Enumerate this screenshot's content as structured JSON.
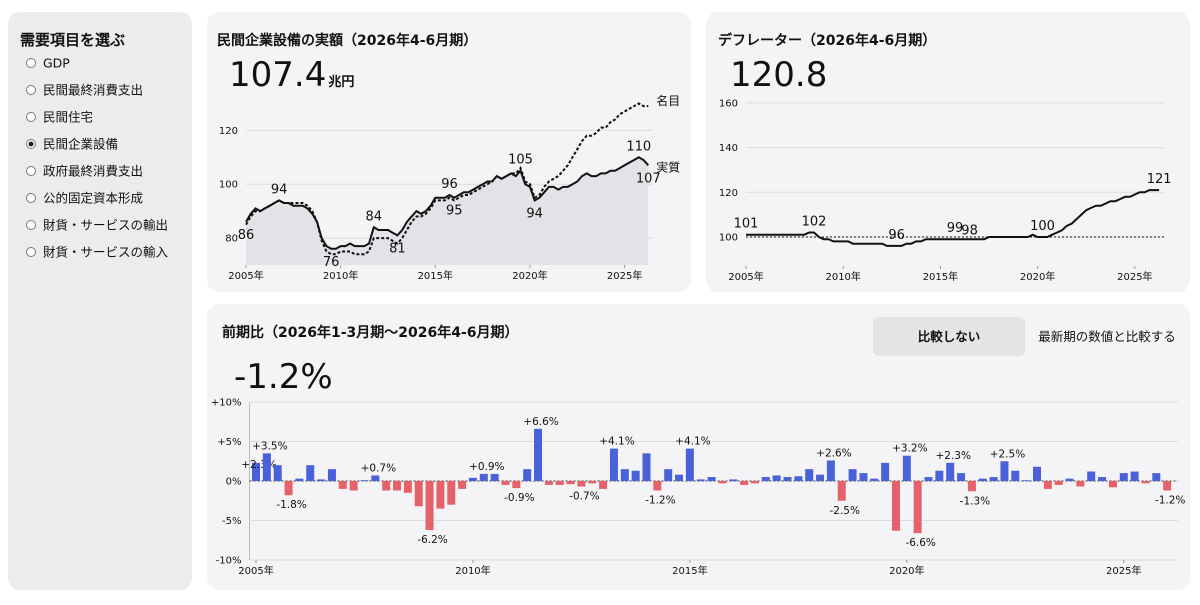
{
  "sidebar": {
    "title": "需要項目を選ぶ",
    "options": [
      "GDP",
      "民間最終消費支出",
      "民間住宅",
      "民間企業設備",
      "政府最終消費支出",
      "公的固定資本形成",
      "財貨・サービスの輸出",
      "財貨・サービスの輸入"
    ],
    "selected": 3
  },
  "compare": {
    "options": [
      "比較しない",
      "最新期の数値と比較する"
    ],
    "selected": 0
  },
  "chart_data": [
    {
      "type": "line",
      "title": "民間企業設備の実額（2026年4-6月期）",
      "value_text": "107.4",
      "unit": "兆円",
      "x": [
        2005,
        2005.25,
        2005.5,
        2005.75,
        2006,
        2006.25,
        2006.5,
        2006.75,
        2007,
        2007.25,
        2007.5,
        2007.75,
        2008,
        2008.25,
        2008.5,
        2008.75,
        2009,
        2009.25,
        2009.5,
        2009.75,
        2010,
        2010.25,
        2010.5,
        2010.75,
        2011,
        2011.25,
        2011.5,
        2011.75,
        2012,
        2012.25,
        2012.5,
        2012.75,
        2013,
        2013.25,
        2013.5,
        2013.75,
        2014,
        2014.25,
        2014.5,
        2014.75,
        2015,
        2015.25,
        2015.5,
        2015.75,
        2016,
        2016.25,
        2016.5,
        2016.75,
        2017,
        2017.25,
        2017.5,
        2017.75,
        2018,
        2018.25,
        2018.5,
        2018.75,
        2019,
        2019.25,
        2019.5,
        2019.75,
        2020,
        2020.25,
        2020.5,
        2020.75,
        2021,
        2021.25,
        2021.5,
        2021.75,
        2022,
        2022.25,
        2022.5,
        2022.75,
        2023,
        2023.25,
        2023.5,
        2023.75,
        2024,
        2024.25,
        2024.5,
        2024.75,
        2025,
        2025.25,
        2025.5,
        2025.75,
        2026,
        2026.25
      ],
      "series": [
        {
          "name": "名目",
          "color": "#111111",
          "style": "dashed",
          "values": [
            85,
            88,
            90,
            90,
            91,
            92,
            93,
            94,
            93,
            93,
            93,
            93,
            93,
            92,
            90,
            86,
            79,
            75,
            74,
            74,
            75,
            75,
            75,
            74,
            74,
            74,
            75,
            80,
            80,
            80,
            80,
            79,
            78,
            80,
            83,
            86,
            88,
            88,
            89,
            91,
            94,
            94,
            94,
            95,
            94,
            95,
            96,
            96,
            97,
            98,
            99,
            100,
            101,
            103,
            102,
            103,
            104,
            104,
            106,
            101,
            100,
            95,
            96,
            99,
            101,
            102,
            103,
            105,
            107,
            110,
            113,
            116,
            118,
            118,
            119,
            121,
            121,
            123,
            124,
            126,
            127,
            128,
            129,
            130,
            129,
            129
          ]
        },
        {
          "name": "実質",
          "color": "#111111",
          "style": "solid",
          "area": true,
          "values": [
            86,
            89,
            91,
            90,
            91,
            92,
            93,
            94,
            93,
            93,
            92,
            92,
            92,
            91,
            89,
            86,
            80,
            77,
            76,
            76,
            77,
            77,
            78,
            77,
            77,
            77,
            78,
            84,
            83,
            83,
            83,
            82,
            81,
            83,
            86,
            88,
            90,
            89,
            90,
            92,
            95,
            95,
            95,
            96,
            95,
            96,
            97,
            97,
            98,
            99,
            100,
            101,
            101,
            103,
            102,
            103,
            104,
            103,
            105,
            100,
            99,
            94,
            95,
            97,
            99,
            99,
            98,
            99,
            99,
            100,
            101,
            103,
            104,
            103,
            103,
            104,
            104,
            105,
            105,
            106,
            107,
            108,
            109,
            110,
            109,
            107
          ]
        }
      ],
      "annotations": [
        {
          "x": 2005,
          "y": 86,
          "position": "below"
        },
        {
          "x": 2006.75,
          "y": 94,
          "position": "above"
        },
        {
          "x": 2009.5,
          "y": 76,
          "position": "below"
        },
        {
          "x": 2011.75,
          "y": 84,
          "position": "above"
        },
        {
          "x": 2013,
          "y": 81,
          "position": "below"
        },
        {
          "x": 2015.75,
          "y": 96,
          "position": "above"
        },
        {
          "x": 2016,
          "y": 95,
          "position": "below"
        },
        {
          "x": 2019.5,
          "y": 105,
          "position": "above"
        },
        {
          "x": 2020.25,
          "y": 94,
          "position": "below"
        },
        {
          "x": 2025.75,
          "y": 110,
          "position": "above"
        },
        {
          "x": 2026.25,
          "y": 107,
          "position": "below"
        }
      ],
      "xlim": [
        2005,
        2026.5
      ],
      "xticks": [
        {
          "value": 2005,
          "label": "2005年"
        },
        {
          "value": 2010,
          "label": "2010年"
        },
        {
          "value": 2015,
          "label": "2015年"
        },
        {
          "value": 2020,
          "label": "2020年"
        },
        {
          "value": 2025,
          "label": "2025年"
        }
      ],
      "ylim": [
        70,
        132
      ],
      "yticks": [
        80,
        100,
        120
      ],
      "grid": true
    },
    {
      "type": "line",
      "title": "デフレーター（2026年4-6月期）",
      "value_text": "120.8",
      "reference_line": 100,
      "x": [
        2005,
        2005.25,
        2005.5,
        2005.75,
        2006,
        2006.25,
        2006.5,
        2006.75,
        2007,
        2007.25,
        2007.5,
        2007.75,
        2008,
        2008.25,
        2008.5,
        2008.75,
        2009,
        2009.25,
        2009.5,
        2009.75,
        2010,
        2010.25,
        2010.5,
        2010.75,
        2011,
        2011.25,
        2011.5,
        2011.75,
        2012,
        2012.25,
        2012.5,
        2012.75,
        2013,
        2013.25,
        2013.5,
        2013.75,
        2014,
        2014.25,
        2014.5,
        2014.75,
        2015,
        2015.25,
        2015.5,
        2015.75,
        2016,
        2016.25,
        2016.5,
        2016.75,
        2017,
        2017.25,
        2017.5,
        2017.75,
        2018,
        2018.25,
        2018.5,
        2018.75,
        2019,
        2019.25,
        2019.5,
        2019.75,
        2020,
        2020.25,
        2020.5,
        2020.75,
        2021,
        2021.25,
        2021.5,
        2021.75,
        2022,
        2022.25,
        2022.5,
        2022.75,
        2023,
        2023.25,
        2023.5,
        2023.75,
        2024,
        2024.25,
        2024.5,
        2024.75,
        2025,
        2025.25,
        2025.5,
        2025.75,
        2026,
        2026.25
      ],
      "series": [
        {
          "color": "#111111",
          "style": "solid",
          "values": [
            101,
            101,
            101,
            101,
            101,
            101,
            101,
            101,
            101,
            101,
            101,
            101,
            101,
            102,
            102,
            100,
            99,
            99,
            98,
            98,
            98,
            98,
            97,
            97,
            97,
            97,
            97,
            97,
            97,
            96,
            96,
            96,
            96,
            97,
            97,
            98,
            98,
            99,
            99,
            99,
            99,
            99,
            99,
            99,
            99,
            99,
            99,
            99,
            99,
            99,
            100,
            100,
            100,
            100,
            100,
            100,
            100,
            100,
            100,
            101,
            100,
            100,
            100,
            101,
            102,
            103,
            105,
            106,
            108,
            110,
            112,
            113,
            114,
            114,
            115,
            116,
            116,
            117,
            118,
            118,
            119,
            120,
            120,
            121,
            121,
            121
          ]
        }
      ],
      "annotations": [
        {
          "x": 2005,
          "y": 101,
          "position": "above"
        },
        {
          "x": 2008.5,
          "y": 102,
          "position": "above"
        },
        {
          "x": 2012.75,
          "y": 96,
          "position": "above"
        },
        {
          "x": 2015.75,
          "y": 99,
          "position": "above"
        },
        {
          "x": 2016.5,
          "y": 98,
          "position": "above"
        },
        {
          "x": 2020.25,
          "y": 100,
          "position": "above"
        },
        {
          "x": 2026.25,
          "y": 121,
          "position": "above"
        }
      ],
      "xlim": [
        2005,
        2026.5
      ],
      "xticks": [
        {
          "value": 2005,
          "label": "2005年"
        },
        {
          "value": 2010,
          "label": "2010年"
        },
        {
          "value": 2015,
          "label": "2015年"
        },
        {
          "value": 2020,
          "label": "2020年"
        },
        {
          "value": 2025,
          "label": "2025年"
        }
      ],
      "ylim": [
        87,
        164
      ],
      "yticks": [
        100,
        120,
        140,
        160
      ],
      "grid": true
    },
    {
      "type": "bar",
      "title": "前期比（2026年1-3月期〜2026年4-6月期）",
      "value_text": "-1.2%",
      "x": [
        2005,
        2005.25,
        2005.5,
        2005.75,
        2006,
        2006.25,
        2006.5,
        2006.75,
        2007,
        2007.25,
        2007.5,
        2007.75,
        2008,
        2008.25,
        2008.5,
        2008.75,
        2009,
        2009.25,
        2009.5,
        2009.75,
        2010,
        2010.25,
        2010.5,
        2010.75,
        2011,
        2011.25,
        2011.5,
        2011.75,
        2012,
        2012.25,
        2012.5,
        2012.75,
        2013,
        2013.25,
        2013.5,
        2013.75,
        2014,
        2014.25,
        2014.5,
        2014.75,
        2015,
        2015.25,
        2015.5,
        2015.75,
        2016,
        2016.25,
        2016.5,
        2016.75,
        2017,
        2017.25,
        2017.5,
        2017.75,
        2018,
        2018.25,
        2018.5,
        2018.75,
        2019,
        2019.25,
        2019.5,
        2019.75,
        2020,
        2020.25,
        2020.5,
        2020.75,
        2021,
        2021.25,
        2021.5,
        2021.75,
        2022,
        2022.25,
        2022.5,
        2022.75,
        2023,
        2023.25,
        2023.5,
        2023.75,
        2024,
        2024.25,
        2024.5,
        2024.75,
        2025,
        2025.25,
        2025.5,
        2025.75,
        2026
      ],
      "values": [
        2.3,
        3.5,
        2.0,
        -1.8,
        0.3,
        2.0,
        0.2,
        1.5,
        -1.0,
        -1.2,
        0.1,
        0.7,
        -1.2,
        -1.2,
        -1.5,
        -3.2,
        -6.2,
        -3.5,
        -3.0,
        -1.0,
        0.4,
        0.9,
        0.9,
        -0.5,
        -0.9,
        1.5,
        6.6,
        -0.5,
        -0.5,
        -0.4,
        -0.7,
        -0.3,
        -1.0,
        4.1,
        1.5,
        1.3,
        3.5,
        -1.2,
        1.5,
        0.8,
        4.1,
        0.2,
        0.5,
        -0.3,
        0.2,
        -0.5,
        -0.3,
        0.5,
        0.7,
        0.5,
        0.6,
        1.5,
        0.8,
        2.6,
        -2.5,
        1.5,
        1.0,
        0.3,
        2.3,
        -6.3,
        3.2,
        -6.6,
        0.5,
        1.3,
        2.3,
        1.0,
        -1.3,
        0.3,
        0.5,
        2.5,
        1.3,
        0.1,
        1.8,
        -1.0,
        -0.5,
        0.3,
        -0.7,
        1.2,
        0.5,
        -0.8,
        1.0,
        1.2,
        -0.3,
        1.0,
        -1.2
      ],
      "value_labels": [
        "+2.3%",
        "+3.5%",
        null,
        "-1.8%",
        null,
        null,
        null,
        null,
        null,
        null,
        null,
        "+0.7%",
        null,
        null,
        null,
        null,
        "-6.2%",
        null,
        null,
        null,
        null,
        "+0.9%",
        null,
        null,
        "-0.9%",
        null,
        "+6.6%",
        null,
        null,
        null,
        "-0.7%",
        null,
        null,
        "+4.1%",
        null,
        null,
        null,
        "-1.2%",
        null,
        null,
        "+4.1%",
        null,
        null,
        null,
        null,
        null,
        null,
        null,
        null,
        null,
        null,
        null,
        null,
        "+2.6%",
        "-2.5%",
        null,
        null,
        null,
        null,
        null,
        "+3.2%",
        "-6.6%",
        null,
        null,
        "+2.3%",
        null,
        "-1.3%",
        null,
        null,
        "+2.5%",
        null,
        null,
        null,
        null,
        null,
        null,
        null,
        null,
        null,
        null,
        null,
        null,
        null,
        null,
        "-1.2%"
      ],
      "colors": {
        "positive": "#4a62d9",
        "negative": "#e5626a"
      },
      "xlim": [
        2004.85,
        2026.25
      ],
      "xticks": [
        {
          "value": 2005,
          "label": "2005年"
        },
        {
          "value": 2010,
          "label": "2010年"
        },
        {
          "value": 2015,
          "label": "2015年"
        },
        {
          "value": 2020,
          "label": "2020年"
        },
        {
          "value": 2025,
          "label": "2025年"
        }
      ],
      "ylim": [
        -10,
        10
      ],
      "yticks": [
        {
          "value": 10,
          "label": "+10%"
        },
        {
          "value": 5,
          "label": "+5%"
        },
        {
          "value": 0,
          "label": "0%"
        },
        {
          "value": -5,
          "label": "-5%"
        },
        {
          "value": -10,
          "label": "-10%"
        }
      ],
      "grid": true
    }
  ]
}
